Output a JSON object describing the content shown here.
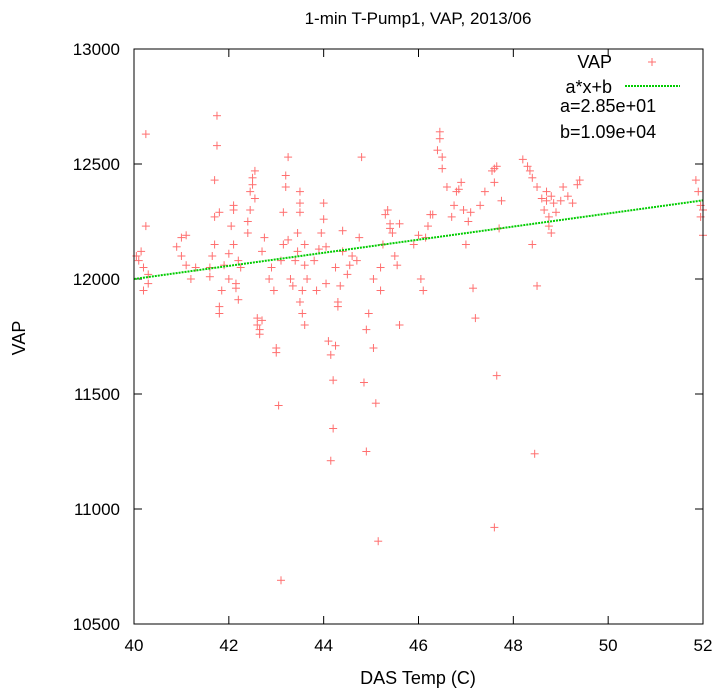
{
  "chart_data": {
    "type": "scatter",
    "title": "1-min T-Pump1, VAP, 2013/06",
    "xlabel": "DAS Temp (C)",
    "ylabel": "VAP",
    "xlim": [
      40,
      52
    ],
    "ylim": [
      10500,
      13000
    ],
    "xticks": [
      "40",
      "42",
      "44",
      "46",
      "48",
      "50",
      "52"
    ],
    "yticks": [
      "10500",
      "11000",
      "11500",
      "12000",
      "12500",
      "13000"
    ],
    "grid": false,
    "legend_position": "top-right",
    "colors": {
      "points": "#ff6f6f",
      "fit_line": "#00cc00"
    },
    "series": [
      {
        "name": "VAP",
        "style": "plus-marker",
        "points": [
          [
            40.05,
            12100
          ],
          [
            40.1,
            12080
          ],
          [
            40.15,
            12120
          ],
          [
            40.2,
            12050
          ],
          [
            40.2,
            11950
          ],
          [
            40.25,
            12630
          ],
          [
            40.25,
            12230
          ],
          [
            40.3,
            12020
          ],
          [
            40.3,
            11980
          ],
          [
            40.9,
            12140
          ],
          [
            41.0,
            12100
          ],
          [
            41.0,
            12180
          ],
          [
            41.1,
            12190
          ],
          [
            41.1,
            12060
          ],
          [
            41.2,
            12000
          ],
          [
            41.3,
            12050
          ],
          [
            41.6,
            12010
          ],
          [
            41.6,
            12050
          ],
          [
            41.65,
            12100
          ],
          [
            41.7,
            12150
          ],
          [
            41.7,
            12430
          ],
          [
            41.75,
            12580
          ],
          [
            41.75,
            12710
          ],
          [
            41.7,
            12270
          ],
          [
            41.8,
            12290
          ],
          [
            41.8,
            11880
          ],
          [
            41.8,
            11850
          ],
          [
            41.85,
            11950
          ],
          [
            41.9,
            12060
          ],
          [
            42.0,
            12000
          ],
          [
            42.0,
            12110
          ],
          [
            42.05,
            12230
          ],
          [
            42.1,
            12300
          ],
          [
            42.1,
            12320
          ],
          [
            42.1,
            12150
          ],
          [
            42.15,
            11980
          ],
          [
            42.15,
            11960
          ],
          [
            42.2,
            11910
          ],
          [
            42.2,
            12080
          ],
          [
            42.25,
            12050
          ],
          [
            42.4,
            12200
          ],
          [
            42.4,
            12250
          ],
          [
            42.45,
            12300
          ],
          [
            42.45,
            12380
          ],
          [
            42.5,
            12410
          ],
          [
            42.5,
            12440
          ],
          [
            42.55,
            12470
          ],
          [
            42.55,
            12350
          ],
          [
            42.6,
            11830
          ],
          [
            42.6,
            11800
          ],
          [
            42.65,
            11780
          ],
          [
            42.65,
            11760
          ],
          [
            42.7,
            11820
          ],
          [
            42.7,
            12120
          ],
          [
            42.75,
            12180
          ],
          [
            42.85,
            12000
          ],
          [
            42.9,
            12050
          ],
          [
            42.95,
            11950
          ],
          [
            43.0,
            11700
          ],
          [
            43.0,
            11680
          ],
          [
            43.05,
            11450
          ],
          [
            43.1,
            10690
          ],
          [
            43.1,
            12080
          ],
          [
            43.15,
            12150
          ],
          [
            43.15,
            12290
          ],
          [
            43.2,
            12400
          ],
          [
            43.2,
            12450
          ],
          [
            43.25,
            12530
          ],
          [
            43.25,
            12170
          ],
          [
            43.3,
            12000
          ],
          [
            43.35,
            11970
          ],
          [
            43.4,
            12080
          ],
          [
            43.45,
            12120
          ],
          [
            43.45,
            12200
          ],
          [
            43.5,
            12290
          ],
          [
            43.5,
            12330
          ],
          [
            43.5,
            12380
          ],
          [
            43.5,
            11900
          ],
          [
            43.55,
            11950
          ],
          [
            43.55,
            11850
          ],
          [
            43.6,
            11800
          ],
          [
            43.6,
            12150
          ],
          [
            43.6,
            12060
          ],
          [
            43.65,
            12000
          ],
          [
            43.8,
            12080
          ],
          [
            43.85,
            11950
          ],
          [
            43.9,
            12130
          ],
          [
            43.95,
            12200
          ],
          [
            44.0,
            12260
          ],
          [
            44.0,
            12330
          ],
          [
            44.05,
            12140
          ],
          [
            44.05,
            11980
          ],
          [
            44.1,
            11730
          ],
          [
            44.15,
            11670
          ],
          [
            44.15,
            11210
          ],
          [
            44.2,
            11350
          ],
          [
            44.2,
            11560
          ],
          [
            44.25,
            11710
          ],
          [
            44.25,
            12050
          ],
          [
            44.3,
            11900
          ],
          [
            44.3,
            11880
          ],
          [
            44.35,
            11970
          ],
          [
            44.4,
            12120
          ],
          [
            44.4,
            12210
          ],
          [
            44.5,
            12020
          ],
          [
            44.55,
            12060
          ],
          [
            44.6,
            12100
          ],
          [
            44.7,
            12080
          ],
          [
            44.75,
            12180
          ],
          [
            44.8,
            12530
          ],
          [
            44.85,
            11550
          ],
          [
            44.9,
            11250
          ],
          [
            44.9,
            11780
          ],
          [
            44.95,
            11850
          ],
          [
            45.05,
            12000
          ],
          [
            45.05,
            11700
          ],
          [
            45.1,
            11460
          ],
          [
            45.15,
            10860
          ],
          [
            45.2,
            11950
          ],
          [
            45.2,
            12050
          ],
          [
            45.25,
            12150
          ],
          [
            45.3,
            12280
          ],
          [
            45.35,
            12300
          ],
          [
            45.4,
            12240
          ],
          [
            45.4,
            12220
          ],
          [
            45.45,
            12200
          ],
          [
            45.5,
            12100
          ],
          [
            45.55,
            12060
          ],
          [
            45.6,
            11800
          ],
          [
            45.6,
            12240
          ],
          [
            45.9,
            12150
          ],
          [
            46.0,
            12190
          ],
          [
            46.05,
            12000
          ],
          [
            46.1,
            11950
          ],
          [
            46.15,
            12180
          ],
          [
            46.2,
            12230
          ],
          [
            46.25,
            12280
          ],
          [
            46.3,
            12280
          ],
          [
            46.4,
            12560
          ],
          [
            46.45,
            12610
          ],
          [
            46.45,
            12640
          ],
          [
            46.5,
            12530
          ],
          [
            46.5,
            12480
          ],
          [
            46.6,
            12400
          ],
          [
            46.7,
            12270
          ],
          [
            46.75,
            12320
          ],
          [
            46.8,
            12380
          ],
          [
            46.85,
            12390
          ],
          [
            46.9,
            12420
          ],
          [
            46.95,
            12300
          ],
          [
            47.0,
            12150
          ],
          [
            47.05,
            12250
          ],
          [
            47.1,
            12290
          ],
          [
            47.15,
            11960
          ],
          [
            47.2,
            11830
          ],
          [
            47.3,
            12320
          ],
          [
            47.4,
            12380
          ],
          [
            47.55,
            12470
          ],
          [
            47.6,
            12420
          ],
          [
            47.6,
            12480
          ],
          [
            47.65,
            12490
          ],
          [
            47.65,
            11580
          ],
          [
            47.6,
            10920
          ],
          [
            47.7,
            12220
          ],
          [
            47.75,
            12340
          ],
          [
            48.2,
            12520
          ],
          [
            48.3,
            12490
          ],
          [
            48.35,
            12470
          ],
          [
            48.4,
            12440
          ],
          [
            48.4,
            12150
          ],
          [
            48.45,
            11240
          ],
          [
            48.5,
            11970
          ],
          [
            48.5,
            12400
          ],
          [
            48.6,
            12350
          ],
          [
            48.65,
            12300
          ],
          [
            48.7,
            12380
          ],
          [
            48.7,
            12340
          ],
          [
            48.75,
            12270
          ],
          [
            48.75,
            12230
          ],
          [
            48.8,
            12200
          ],
          [
            48.8,
            12360
          ],
          [
            48.85,
            12330
          ],
          [
            48.9,
            12290
          ],
          [
            49.0,
            12340
          ],
          [
            49.05,
            12400
          ],
          [
            49.15,
            12360
          ],
          [
            49.25,
            12330
          ],
          [
            49.35,
            12410
          ],
          [
            49.4,
            12430
          ],
          [
            51.85,
            12430
          ],
          [
            51.9,
            12380
          ],
          [
            51.95,
            12320
          ],
          [
            51.95,
            12270
          ],
          [
            52.0,
            12190
          ],
          [
            52.0,
            12300
          ]
        ]
      }
    ],
    "fit": {
      "name": "a*x+b",
      "a": 28.5,
      "b": 10860,
      "a_label": "a=2.85e+01",
      "b_label": "b=1.09e+04"
    }
  }
}
